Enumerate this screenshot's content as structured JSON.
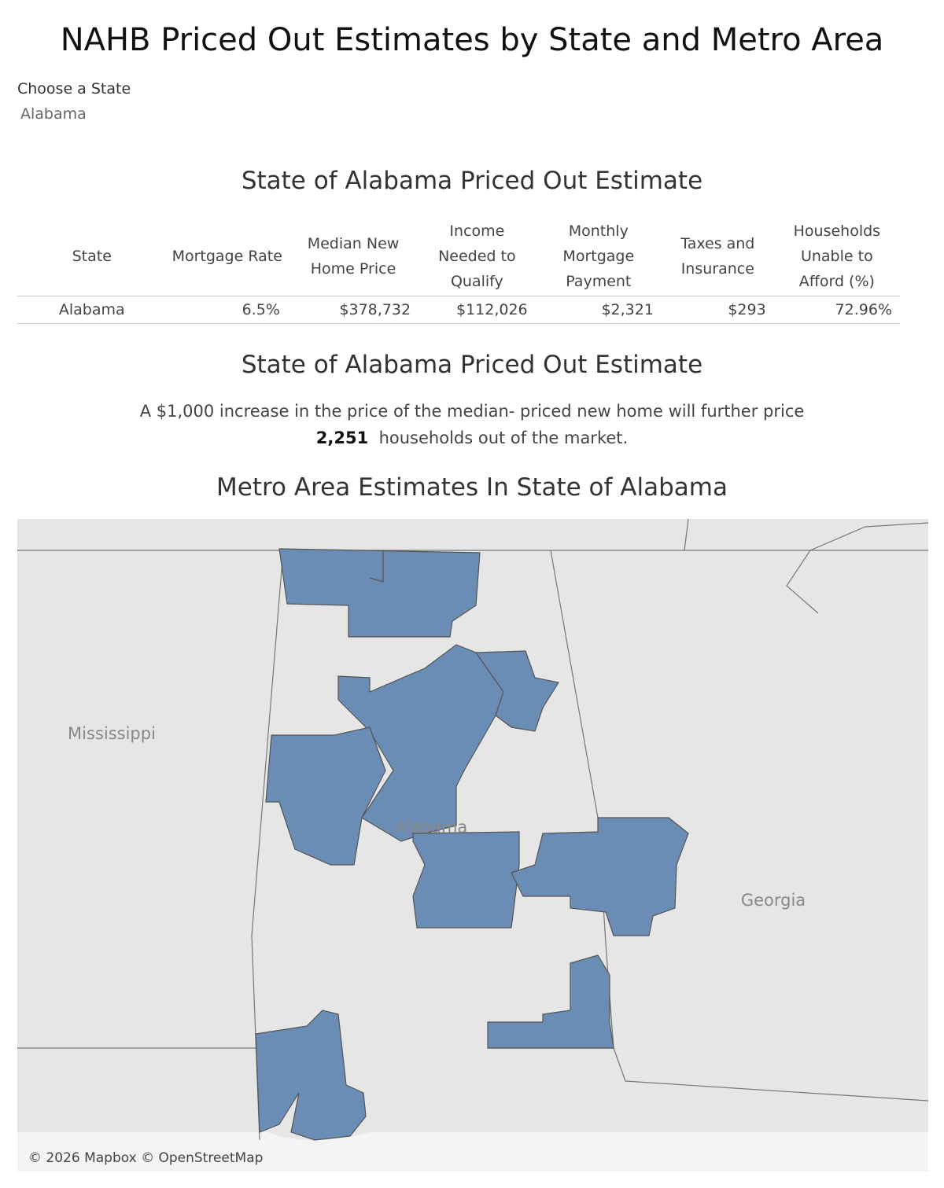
{
  "header": {
    "title": "NAHB Priced Out Estimates by State and Metro Area"
  },
  "filter": {
    "label": "Choose a State",
    "value": "Alabama"
  },
  "table": {
    "title": "State of Alabama Priced Out Estimate",
    "columns": [
      "State",
      "Mortgage Rate",
      "Median New Home Price",
      "Income Needed to Qualify",
      "Monthly Mortgage Payment",
      "Taxes and Insurance",
      "Households Unable to Afford (%)"
    ],
    "rows": [
      [
        "Alabama",
        "6.5%",
        "$378,732",
        "$112,026",
        "$2,321",
        "$293",
        "72.96%"
      ]
    ]
  },
  "summary": {
    "title": "State of Alabama Priced Out Estimate",
    "text_before": "A $1,000 increase in the price of  the median- priced new home will further price",
    "number": "2,251",
    "text_after": "households out of the market."
  },
  "map": {
    "title": "Metro Area Estimates In State of Alabama",
    "labels": [
      "Mississippi",
      "Alabama",
      "Georgia"
    ],
    "attribution": "© 2026 Mapbox © OpenStreetMap"
  }
}
